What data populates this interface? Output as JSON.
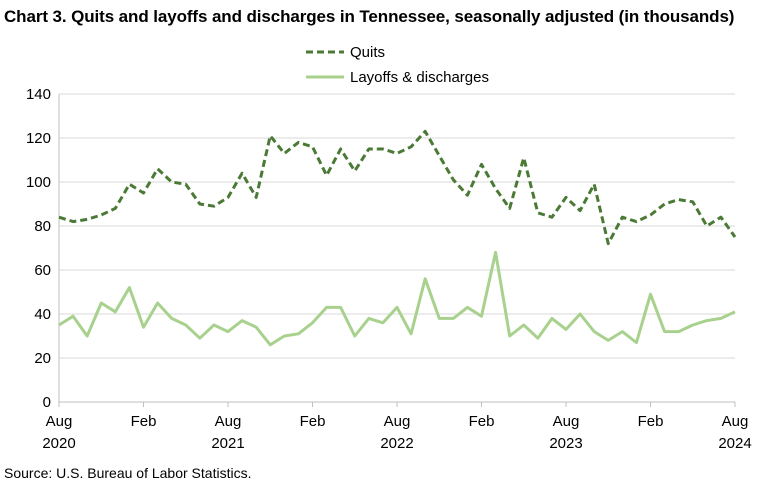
{
  "chart_data": {
    "type": "line",
    "title": "Chart 3. Quits and layoffs and discharges in Tennessee, seasonally adjusted (in thousands)",
    "source": "Source: U.S. Bureau of Labor Statistics.",
    "ylim": [
      0,
      140
    ],
    "yticks": [
      0,
      20,
      40,
      60,
      80,
      100,
      120,
      140
    ],
    "grid": true,
    "legend_position": "top-center",
    "x": [
      "2020-08",
      "2020-09",
      "2020-10",
      "2020-11",
      "2020-12",
      "2021-01",
      "2021-02",
      "2021-03",
      "2021-04",
      "2021-05",
      "2021-06",
      "2021-07",
      "2021-08",
      "2021-09",
      "2021-10",
      "2021-11",
      "2021-12",
      "2022-01",
      "2022-02",
      "2022-03",
      "2022-04",
      "2022-05",
      "2022-06",
      "2022-07",
      "2022-08",
      "2022-09",
      "2022-10",
      "2022-11",
      "2022-12",
      "2023-01",
      "2023-02",
      "2023-03",
      "2023-04",
      "2023-05",
      "2023-06",
      "2023-07",
      "2023-08",
      "2023-09",
      "2023-10",
      "2023-11",
      "2023-12",
      "2024-01",
      "2024-02",
      "2024-03",
      "2024-04",
      "2024-05",
      "2024-06",
      "2024-07",
      "2024-08"
    ],
    "x_tick_labels": [
      {
        "index": 0,
        "month": "Aug",
        "year": "2020"
      },
      {
        "index": 6,
        "month": "Feb",
        "year": ""
      },
      {
        "index": 12,
        "month": "Aug",
        "year": "2021"
      },
      {
        "index": 18,
        "month": "Feb",
        "year": ""
      },
      {
        "index": 24,
        "month": "Aug",
        "year": "2022"
      },
      {
        "index": 30,
        "month": "Feb",
        "year": ""
      },
      {
        "index": 36,
        "month": "Aug",
        "year": "2023"
      },
      {
        "index": 42,
        "month": "Feb",
        "year": ""
      },
      {
        "index": 48,
        "month": "Aug",
        "year": "2024"
      }
    ],
    "series": [
      {
        "name": "Quits",
        "color": "#4a7a35",
        "style": "dashed",
        "values": [
          84,
          82,
          83,
          85,
          88,
          99,
          95,
          106,
          100,
          99,
          90,
          89,
          93,
          104,
          93,
          121,
          113,
          118,
          116,
          103,
          115,
          105,
          115,
          115,
          113,
          116,
          123,
          112,
          101,
          94,
          108,
          97,
          88,
          111,
          86,
          84,
          93,
          87,
          99,
          72,
          84,
          82,
          85,
          90,
          92,
          91,
          80,
          84,
          75
        ]
      },
      {
        "name": "Layoffs & discharges",
        "color": "#a9d18e",
        "style": "solid",
        "values": [
          35,
          39,
          30,
          45,
          41,
          52,
          34,
          45,
          38,
          35,
          29,
          35,
          32,
          37,
          34,
          26,
          30,
          31,
          36,
          43,
          43,
          30,
          38,
          36,
          43,
          31,
          56,
          38,
          38,
          43,
          39,
          68,
          30,
          35,
          29,
          38,
          33,
          40,
          32,
          28,
          32,
          27,
          49,
          32,
          32,
          35,
          37,
          38,
          41
        ]
      }
    ]
  }
}
